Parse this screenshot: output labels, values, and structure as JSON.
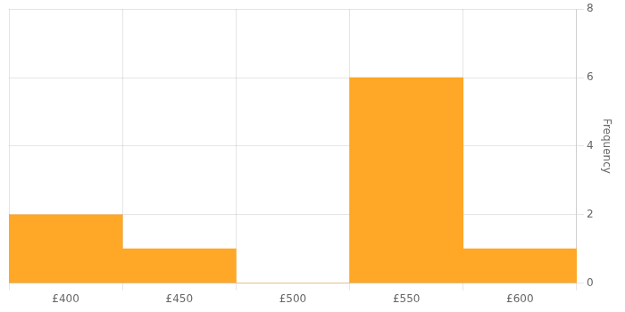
{
  "chart_data": {
    "type": "histogram",
    "bins": [
      375,
      425,
      475,
      525,
      575,
      625
    ],
    "values": [
      2,
      1,
      0,
      6,
      1
    ],
    "color": "#FFA726",
    "ylabel": "Frequency",
    "xlim": [
      375,
      625
    ],
    "xticks": [
      {
        "value": 400,
        "label": "£400"
      },
      {
        "value": 450,
        "label": "£450"
      },
      {
        "value": 500,
        "label": "£500"
      },
      {
        "value": 550,
        "label": "£550"
      },
      {
        "value": 600,
        "label": "£600"
      }
    ],
    "ylim": [
      0,
      8
    ],
    "yticks": [
      0,
      2,
      4,
      6,
      8
    ],
    "grid": true
  }
}
